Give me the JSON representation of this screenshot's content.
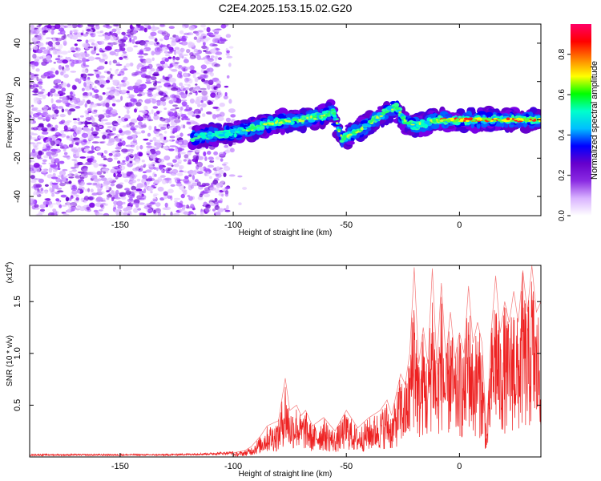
{
  "page": {
    "title": "C2E4.2025.153.15.02.G20"
  },
  "chart_data": [
    {
      "type": "heatmap",
      "title": "C2E4.2025.153.15.02.G20",
      "xlabel": "Height of straight line (km)",
      "ylabel": "Frequency (Hz)",
      "xlim": [
        -190,
        36
      ],
      "ylim": [
        -50,
        50
      ],
      "x_ticks": [
        -150,
        -100,
        -50,
        0
      ],
      "y_ticks": [
        -40,
        -20,
        0,
        20,
        40
      ],
      "x_tick_labels": [
        "-150",
        "-100",
        "-50",
        "0"
      ],
      "y_tick_labels": [
        "-40",
        "-20",
        "0",
        "20",
        "40"
      ],
      "noise_region": {
        "x_range": [
          -190,
          -100
        ],
        "freq_range": [
          -50,
          50
        ]
      },
      "signal_trace": {
        "x": [
          -118,
          -110,
          -100,
          -90,
          -80,
          -70,
          -60,
          -56,
          -52,
          -45,
          -35,
          -28,
          -24,
          -20,
          -15,
          -10,
          0,
          10,
          20,
          30,
          36
        ],
        "freq": [
          -9,
          -8,
          -7,
          -4,
          -1,
          0,
          2,
          5,
          -10,
          -6,
          2,
          7,
          -1,
          -3,
          -2,
          0,
          0,
          0,
          0,
          0,
          0
        ]
      },
      "colorbar": {
        "label": "Normalized spectral amplitude",
        "range": [
          0.0,
          0.95
        ],
        "ticks": [
          0.0,
          0.2,
          0.4,
          0.6,
          0.8
        ],
        "tick_labels": [
          "0.0",
          "0.2",
          "0.4",
          "0.6",
          "0.8"
        ],
        "colors": [
          "#ffffff",
          "#d9b3ff",
          "#8a2be2",
          "#6600cc",
          "#0000ff",
          "#00bfff",
          "#00ffcc",
          "#00ff00",
          "#ffff00",
          "#ff8000",
          "#ff0000",
          "#ff0066"
        ]
      }
    },
    {
      "type": "line",
      "xlabel": "Height of straight line (km)",
      "ylabel": "SNR (10 * v/v)",
      "unit_label": "(x10",
      "unit_exponent": "4",
      "unit_close": ")",
      "xlim": [
        -190,
        36
      ],
      "ylim": [
        0,
        1.85
      ],
      "x_ticks": [
        -150,
        -100,
        -50,
        0
      ],
      "y_ticks": [
        0.5,
        1.0,
        1.5
      ],
      "x_tick_labels": [
        "-150",
        "-100",
        "-50",
        "0"
      ],
      "y_tick_labels": [
        "0.5",
        "1.0",
        "1.5"
      ],
      "series": [
        {
          "color": "#ee2222",
          "x": [
            -190,
            -170,
            -150,
            -130,
            -110,
            -100,
            -95,
            -92,
            -88,
            -85,
            -80,
            -77,
            -75,
            -72,
            -70,
            -68,
            -65,
            -60,
            -55,
            -50,
            -45,
            -40,
            -35,
            -32,
            -30,
            -28,
            -26,
            -24,
            -22,
            -20,
            -18,
            -16,
            -14,
            -12,
            -10,
            -8,
            -6,
            -4,
            -2,
            0,
            2,
            4,
            6,
            8,
            10,
            12,
            14,
            16,
            18,
            20,
            22,
            24,
            26,
            28,
            30,
            32,
            34,
            36
          ],
          "y": [
            0.02,
            0.02,
            0.02,
            0.02,
            0.03,
            0.04,
            0.06,
            0.1,
            0.2,
            0.3,
            0.35,
            0.76,
            0.45,
            0.5,
            0.4,
            0.45,
            0.3,
            0.38,
            0.25,
            0.45,
            0.28,
            0.38,
            0.45,
            0.55,
            0.4,
            0.6,
            0.8,
            0.7,
            1.0,
            1.83,
            0.9,
            1.25,
            0.9,
            1.82,
            0.9,
            1.68,
            0.95,
            1.4,
            0.95,
            1.2,
            1.0,
            1.65,
            1.1,
            1.3,
            1.1,
            0.2,
            1.2,
            1.75,
            1.2,
            1.5,
            1.3,
            1.6,
            1.3,
            1.8,
            1.4,
            1.85,
            1.4,
            1.5
          ]
        }
      ]
    }
  ]
}
